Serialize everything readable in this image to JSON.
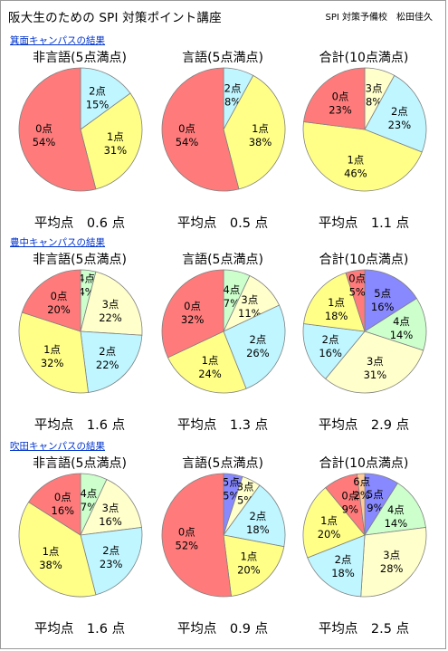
{
  "header": {
    "title": "阪大生のための SPI 対策ポイント講座",
    "author": "SPI 対策予備校　松田佳久"
  },
  "colors": {
    "0点": "#ff7b7b",
    "1点": "#ffff88",
    "2点": "#bff6ff",
    "3点": "#ffffcc",
    "4点": "#ccffcc",
    "5点": "#8888ff",
    "6点": "#ffcc99"
  },
  "sections": [
    {
      "label": "箕面キャンパスの結果",
      "charts": [
        {
          "title": "非言語(5点満点)",
          "average": "平均点　0.6 点",
          "chart_data": {
            "type": "pie",
            "slices": [
              {
                "label": "2点",
                "value": 15
              },
              {
                "label": "1点",
                "value": 31
              },
              {
                "label": "0点",
                "value": 54
              }
            ]
          }
        },
        {
          "title": "言語(5点満点)",
          "average": "平均点　0.5 点",
          "chart_data": {
            "type": "pie",
            "slices": [
              {
                "label": "2点",
                "value": 8
              },
              {
                "label": "1点",
                "value": 38
              },
              {
                "label": "0点",
                "value": 54
              }
            ]
          }
        },
        {
          "title": "合計(10点満点)",
          "average": "平均点　1.1 点",
          "chart_data": {
            "type": "pie",
            "slices": [
              {
                "label": "3点",
                "value": 8
              },
              {
                "label": "2点",
                "value": 23
              },
              {
                "label": "1点",
                "value": 46
              },
              {
                "label": "0点",
                "value": 23
              }
            ]
          }
        }
      ]
    },
    {
      "label": "豊中キャンパスの結果",
      "charts": [
        {
          "title": "非言語(5点満点)",
          "average": "平均点　1.6 点",
          "chart_data": {
            "type": "pie",
            "slices": [
              {
                "label": "4点",
                "value": 4
              },
              {
                "label": "3点",
                "value": 22
              },
              {
                "label": "2点",
                "value": 22
              },
              {
                "label": "1点",
                "value": 32
              },
              {
                "label": "0点",
                "value": 20
              }
            ]
          }
        },
        {
          "title": "言語(5点満点)",
          "average": "平均点　1.3 点",
          "chart_data": {
            "type": "pie",
            "slices": [
              {
                "label": "4点",
                "value": 7
              },
              {
                "label": "3点",
                "value": 11
              },
              {
                "label": "2点",
                "value": 26
              },
              {
                "label": "1点",
                "value": 24
              },
              {
                "label": "0点",
                "value": 32
              }
            ]
          }
        },
        {
          "title": "合計(10点満点)",
          "average": "平均点　2.9 点",
          "chart_data": {
            "type": "pie",
            "slices": [
              {
                "label": "5点",
                "value": 16
              },
              {
                "label": "4点",
                "value": 14
              },
              {
                "label": "3点",
                "value": 31
              },
              {
                "label": "2点",
                "value": 16
              },
              {
                "label": "1点",
                "value": 18
              },
              {
                "label": "0点",
                "value": 5
              }
            ]
          }
        }
      ]
    },
    {
      "label": "吹田キャンパスの結果",
      "charts": [
        {
          "title": "非言語(5点満点)",
          "average": "平均点　1.6 点",
          "chart_data": {
            "type": "pie",
            "slices": [
              {
                "label": "4点",
                "value": 7
              },
              {
                "label": "3点",
                "value": 16
              },
              {
                "label": "2点",
                "value": 23
              },
              {
                "label": "1点",
                "value": 38
              },
              {
                "label": "0点",
                "value": 16
              }
            ]
          }
        },
        {
          "title": "言語(5点満点)",
          "average": "平均点　0.9 点",
          "chart_data": {
            "type": "pie",
            "slices": [
              {
                "label": "5点",
                "value": 5
              },
              {
                "label": "3点",
                "value": 5
              },
              {
                "label": "2点",
                "value": 18
              },
              {
                "label": "1点",
                "value": 20
              },
              {
                "label": "0点",
                "value": 52
              }
            ]
          }
        },
        {
          "title": "合計(10点満点)",
          "average": "平均点　2.5 点",
          "chart_data": {
            "type": "pie",
            "slices": [
              {
                "label": "5点",
                "value": 9
              },
              {
                "label": "4点",
                "value": 14
              },
              {
                "label": "3点",
                "value": 28
              },
              {
                "label": "2点",
                "value": 18
              },
              {
                "label": "1点",
                "value": 20
              },
              {
                "label": "0点",
                "value": 9
              },
              {
                "label": "6点",
                "value": 2
              }
            ]
          }
        }
      ]
    }
  ]
}
